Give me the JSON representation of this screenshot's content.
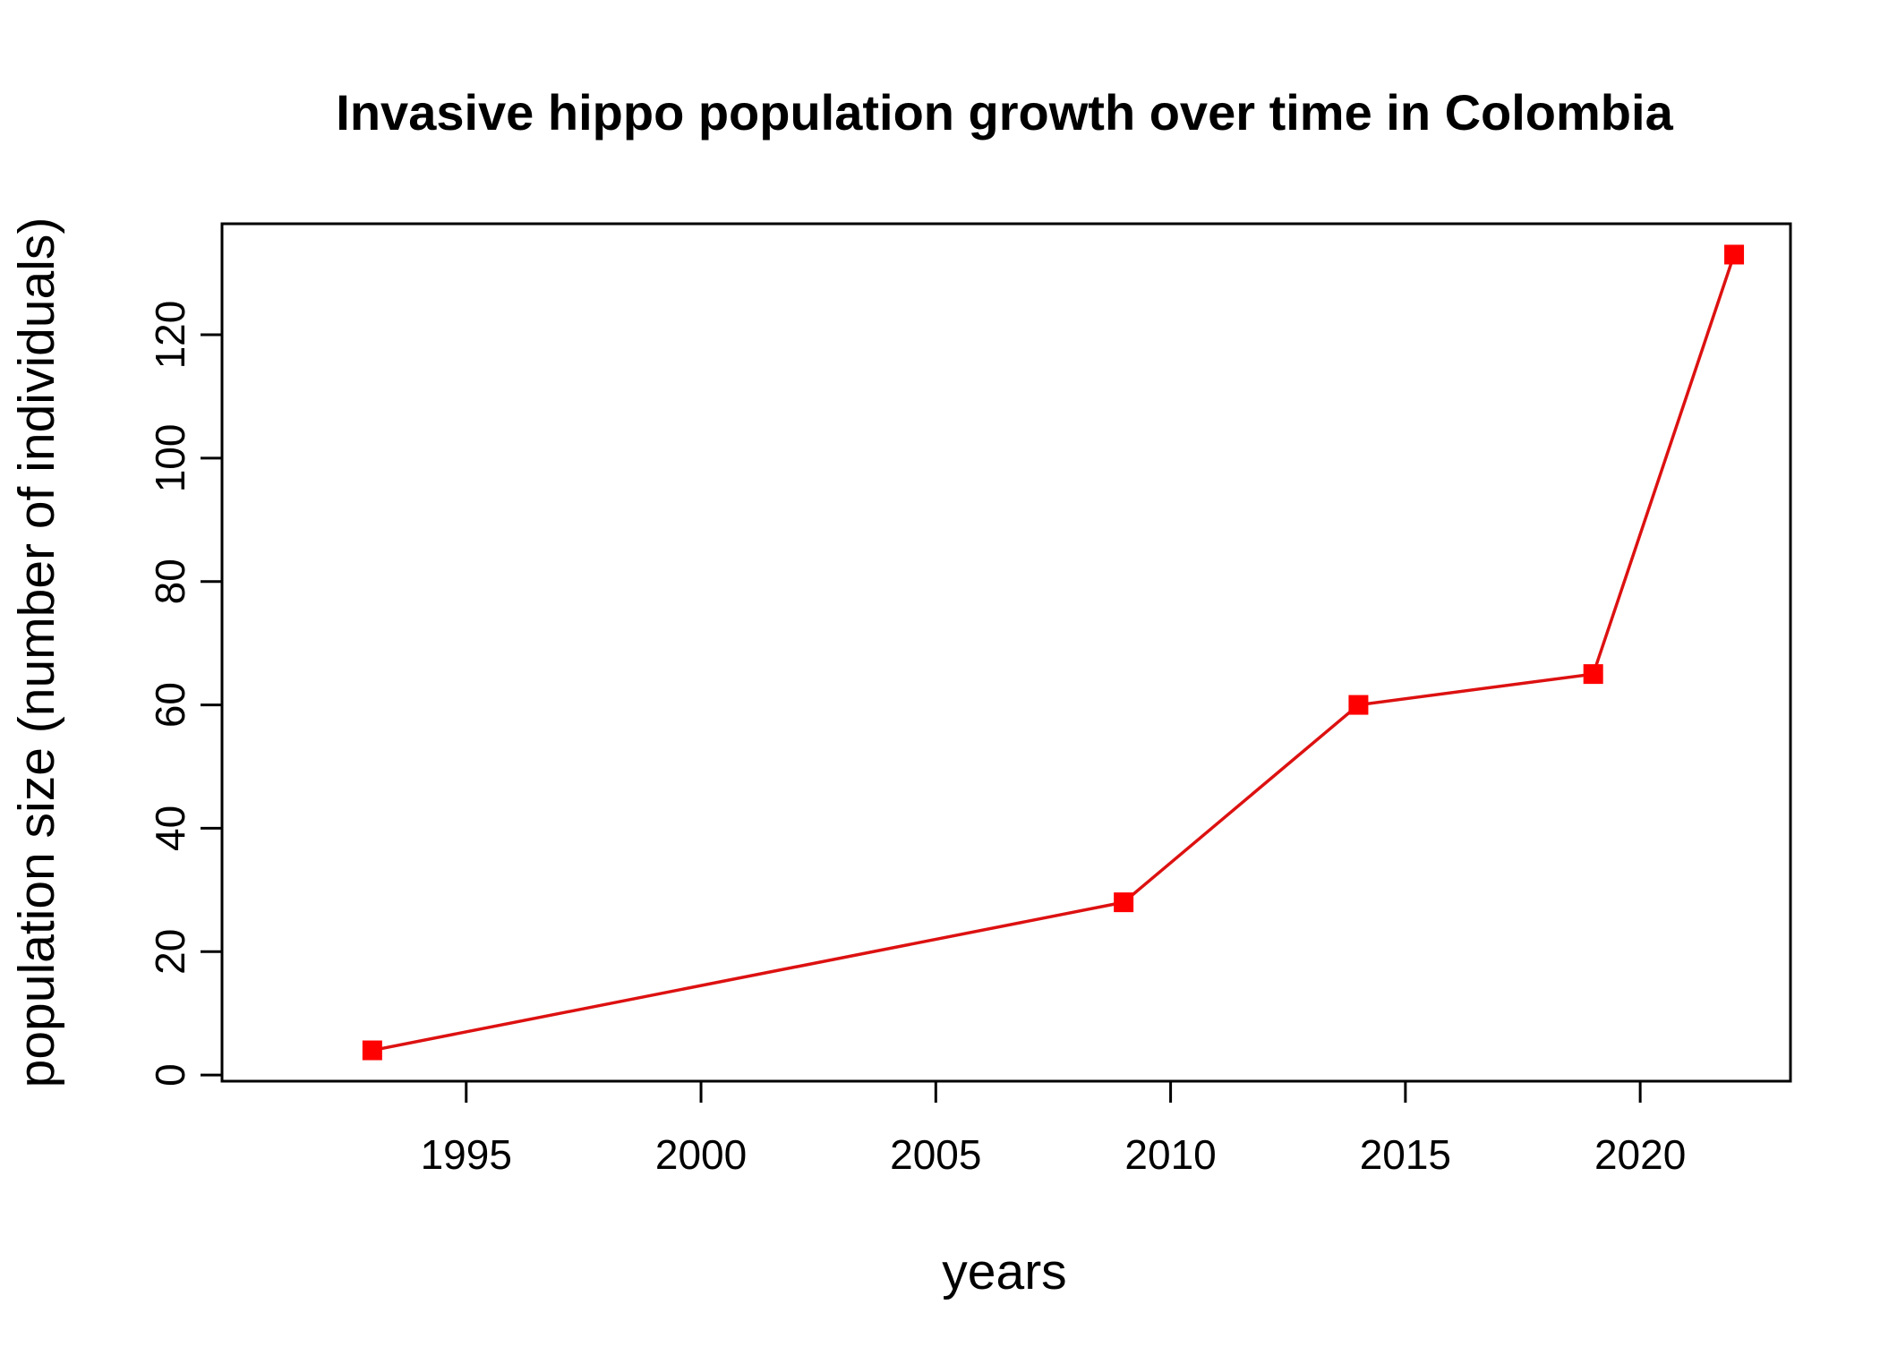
{
  "chart_data": {
    "type": "line",
    "title": "Invasive hippo population growth over time in Colombia",
    "xlabel": "years",
    "ylabel": "population size (number of individuals)",
    "x": [
      1993,
      2009,
      2014,
      2019,
      2022
    ],
    "series": [
      {
        "values": [
          4,
          28,
          60,
          65,
          133
        ],
        "color": "#ff0000",
        "marker": "square"
      }
    ],
    "xlim": [
      1989.8,
      2023.2
    ],
    "ylim": [
      -1,
      138
    ],
    "x_ticks": [
      1995,
      2000,
      2005,
      2010,
      2015,
      2020
    ],
    "x_tick_labels": [
      "1995",
      "2000",
      "2005",
      "2010",
      "2015",
      "2020"
    ],
    "y_ticks": [
      0,
      20,
      40,
      60,
      80,
      100,
      120
    ],
    "y_tick_labels": [
      "0",
      "20",
      "40",
      "60",
      "80",
      "100",
      "120"
    ],
    "grid": false,
    "legend": "none",
    "line_color": "#dd1111",
    "marker_color": "#ff0000",
    "axis_color": "#000000"
  }
}
